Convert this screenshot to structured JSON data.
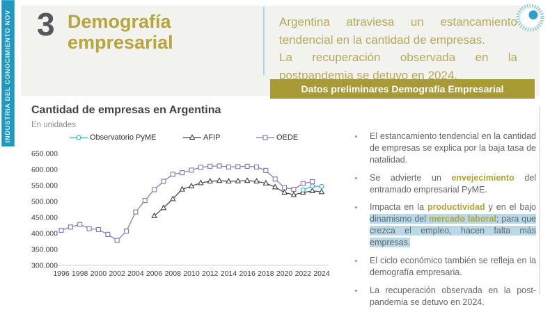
{
  "strip": {
    "text": "INDUSTRIA DEL CONOCIMIENTO NOV"
  },
  "header": {
    "section_number": "3",
    "title_line1": "Demografía",
    "title_line2": "empresarial",
    "intro_1": "Argentina atraviesa un estancamiento tendencial en la cantidad de empresas.",
    "intro_2": "La recuperación observada en la postpandemia se detuvo en 2024."
  },
  "banner": {
    "label": "Datos preliminares Demografía Empresarial"
  },
  "chart": {
    "title": "Cantidad de empresas en Argentina",
    "subtitle": "En unidades"
  },
  "chart_data": {
    "type": "line",
    "title": "Cantidad de empresas en Argentina",
    "subtitle": "En unidades",
    "xlabel": "",
    "ylabel": "",
    "grid": false,
    "legend_position": "top",
    "ylim": [
      300000,
      650000
    ],
    "ytick_step": 50000,
    "xticks": [
      1996,
      1998,
      2000,
      2002,
      2004,
      2006,
      2008,
      2010,
      2012,
      2014,
      2016,
      2018,
      2020,
      2022,
      2024
    ],
    "series": [
      {
        "name": "Observatorio PyME",
        "marker": "circle",
        "color": "#2fb3c7",
        "x": [
          2022,
          2023,
          2024
        ],
        "values": [
          536000,
          548000,
          547000
        ]
      },
      {
        "name": "AFIP",
        "marker": "triangle",
        "color": "#3d3d47",
        "x": [
          2006,
          2007,
          2008,
          2009,
          2010,
          2011,
          2012,
          2013,
          2014,
          2015,
          2016,
          2017,
          2018,
          2019,
          2020,
          2021,
          2022,
          2023,
          2024
        ],
        "values": [
          455000,
          480000,
          508000,
          538000,
          548000,
          558000,
          563000,
          565000,
          563000,
          564000,
          565000,
          563000,
          557000,
          545000,
          528000,
          521000,
          528000,
          533000,
          530000
        ]
      },
      {
        "name": "OEDE",
        "marker": "square",
        "color": "#8673b8",
        "x": [
          1996,
          1997,
          1998,
          1999,
          2000,
          2001,
          2002,
          2003,
          2004,
          2005,
          2006,
          2007,
          2008,
          2009,
          2010,
          2011,
          2012,
          2013,
          2014,
          2015,
          2016,
          2017,
          2018,
          2019,
          2020,
          2021,
          2022,
          2023
        ],
        "values": [
          410000,
          420000,
          428000,
          415000,
          412000,
          397000,
          378000,
          407000,
          467000,
          503000,
          537000,
          563000,
          585000,
          590000,
          598000,
          607000,
          610000,
          611000,
          608000,
          609000,
          610000,
          608000,
          597000,
          570000,
          543000,
          538000,
          556000,
          562000
        ]
      }
    ]
  },
  "bullets": {
    "items": [
      {
        "segments": [
          {
            "t": "El estancamiento tendencial en la cantidad de empresas se explica por la baja tasa de natalidad.",
            "s": "n"
          }
        ]
      },
      {
        "segments": [
          {
            "t": "Se advierte un ",
            "s": "n"
          },
          {
            "t": "envejecimiento",
            "s": "g"
          },
          {
            "t": " del entramado empresarial PyME.",
            "s": "n"
          }
        ]
      },
      {
        "segments": [
          {
            "t": "Impacta en la ",
            "s": "n"
          },
          {
            "t": "productividad",
            "s": "g"
          },
          {
            "t": " y en el bajo ",
            "s": "n"
          },
          {
            "t": "dinamismo del ",
            "s": "h"
          },
          {
            "t": "mercado laboral",
            "s": "hg"
          },
          {
            "t": "; para que crezca el empleo, hacen falta más empresas.",
            "s": "h"
          }
        ]
      },
      {
        "segments": [
          {
            "t": "El ciclo económico también se refleja en la demografía empresaria.",
            "s": "n"
          }
        ]
      },
      {
        "segments": [
          {
            "t": "La recuperación observada en la post-pandemia se detuvo en 2024.",
            "s": "n"
          }
        ]
      }
    ]
  },
  "colors": {
    "accent_gold": "#b3a23c",
    "banner_bg": "#a89a35",
    "strip_teal": "#2098c0",
    "highlight_blue": "#b9d8e8",
    "series_obs_pyme": "#2fb3c7",
    "series_afip": "#3d3d47",
    "series_oede": "#8673b8"
  }
}
